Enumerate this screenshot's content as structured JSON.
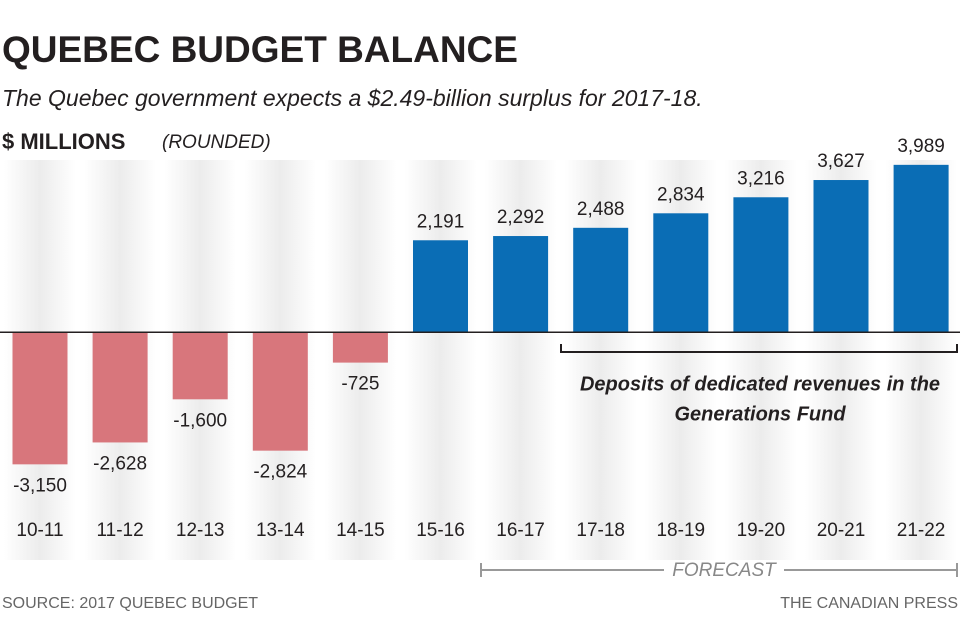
{
  "chart_data": {
    "type": "bar",
    "title": "QUEBEC BUDGET BALANCE",
    "subtitle": "The Quebec government expects a $2.49-billion surplus for 2017-18.",
    "ylabel": "$ MILLIONS",
    "ylabel_note": "(ROUNDED)",
    "categories": [
      "10-11",
      "11-12",
      "12-13",
      "13-14",
      "14-15",
      "15-16",
      "16-17",
      "17-18",
      "18-19",
      "19-20",
      "20-21",
      "21-22"
    ],
    "values": [
      -3150,
      -2628,
      -1600,
      -2824,
      -725,
      2191,
      2292,
      2488,
      2834,
      3216,
      3627,
      3989
    ],
    "value_labels": [
      "-3,150",
      "-2,628",
      "-1,600",
      "-2,824",
      "-725",
      "2,191",
      "2,292",
      "2,488",
      "2,834",
      "3,216",
      "3,627",
      "3,989"
    ],
    "positive_color": "#0a6db5",
    "negative_color": "#d8767c",
    "ylim": [
      -4000,
      4400
    ],
    "annotation": [
      "Deposits of dedicated revenues in the",
      "Generations Fund"
    ],
    "forecast_label": "FORECAST",
    "source": "SOURCE: 2017 QUEBEC BUDGET",
    "credit": "THE CANADIAN PRESS"
  }
}
